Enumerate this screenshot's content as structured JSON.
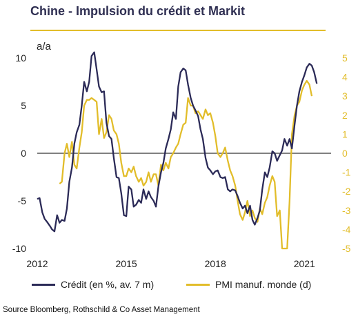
{
  "title": "Chine - Impulsion du crédit et Markit",
  "source": "Source Bloomberg, Rothschild  & Co Asset Management",
  "colors": {
    "credit": "#2b2a57",
    "pmi": "#e2bd2a",
    "zero_line": "#808080",
    "title": "#2f2f52"
  },
  "chart_data": {
    "type": "line",
    "ylabel": "a/a",
    "x_range": [
      2012.0,
      2021.9
    ],
    "x_ticks": [
      2012,
      2015,
      2018,
      2021
    ],
    "x_tick_labels": [
      "2012",
      "2015",
      "2018",
      "2021"
    ],
    "ylim_left": [
      -10,
      10
    ],
    "yticks_left": [
      10,
      5,
      0,
      -5,
      -10
    ],
    "yticks_left_labels": [
      "10",
      "5",
      "0",
      "-5",
      "-10"
    ],
    "ylim_right": [
      -5,
      5
    ],
    "yticks_right": [
      5,
      4,
      3,
      2,
      1,
      0,
      -1,
      -2,
      -3,
      -4,
      -5
    ],
    "yticks_right_labels": [
      "5",
      "4",
      "3",
      "2",
      "1",
      "0",
      "-1",
      "-2",
      "-3",
      "-4",
      "-5"
    ],
    "zero_line": true,
    "series": [
      {
        "name": "Crédit (en %, av. 7 m)",
        "axis": "left",
        "points": [
          [
            2012.0,
            -4.8
          ],
          [
            2012.08,
            -4.7
          ],
          [
            2012.17,
            -6.2
          ],
          [
            2012.25,
            -6.9
          ],
          [
            2012.33,
            -7.2
          ],
          [
            2012.42,
            -7.6
          ],
          [
            2012.5,
            -8.0
          ],
          [
            2012.58,
            -8.2
          ],
          [
            2012.67,
            -6.5
          ],
          [
            2012.75,
            -7.3
          ],
          [
            2012.83,
            -7.0
          ],
          [
            2012.92,
            -7.1
          ],
          [
            2013.0,
            -5.8
          ],
          [
            2013.08,
            -3.0
          ],
          [
            2013.17,
            -1.5
          ],
          [
            2013.25,
            1.0
          ],
          [
            2013.33,
            2.2
          ],
          [
            2013.42,
            3.0
          ],
          [
            2013.5,
            5.0
          ],
          [
            2013.58,
            7.5
          ],
          [
            2013.67,
            6.5
          ],
          [
            2013.75,
            7.5
          ],
          [
            2013.83,
            10.2
          ],
          [
            2013.92,
            10.6
          ],
          [
            2014.0,
            8.8
          ],
          [
            2014.08,
            7.0
          ],
          [
            2014.17,
            6.4
          ],
          [
            2014.25,
            6.5
          ],
          [
            2014.33,
            3.2
          ],
          [
            2014.42,
            1.8
          ],
          [
            2014.5,
            1.5
          ],
          [
            2014.58,
            -0.5
          ],
          [
            2014.67,
            -2.5
          ],
          [
            2014.75,
            -2.6
          ],
          [
            2014.83,
            -4.2
          ],
          [
            2014.92,
            -6.5
          ],
          [
            2015.0,
            -6.6
          ],
          [
            2015.08,
            -3.5
          ],
          [
            2015.17,
            -3.8
          ],
          [
            2015.25,
            -5.6
          ],
          [
            2015.33,
            -5.4
          ],
          [
            2015.42,
            -4.9
          ],
          [
            2015.5,
            -5.2
          ],
          [
            2015.58,
            -3.8
          ],
          [
            2015.67,
            -4.8
          ],
          [
            2015.75,
            -4.0
          ],
          [
            2015.83,
            -4.6
          ],
          [
            2015.92,
            -5.0
          ],
          [
            2016.0,
            -5.6
          ],
          [
            2016.08,
            -3.5
          ],
          [
            2016.17,
            -2.0
          ],
          [
            2016.25,
            -1.0
          ],
          [
            2016.33,
            0.5
          ],
          [
            2016.42,
            1.5
          ],
          [
            2016.5,
            2.5
          ],
          [
            2016.58,
            4.3
          ],
          [
            2016.67,
            3.6
          ],
          [
            2016.75,
            7.0
          ],
          [
            2016.83,
            8.5
          ],
          [
            2016.92,
            8.9
          ],
          [
            2017.0,
            8.7
          ],
          [
            2017.08,
            7.2
          ],
          [
            2017.17,
            5.8
          ],
          [
            2017.25,
            5.0
          ],
          [
            2017.33,
            4.5
          ],
          [
            2017.42,
            3.9
          ],
          [
            2017.5,
            2.5
          ],
          [
            2017.58,
            1.5
          ],
          [
            2017.67,
            -0.5
          ],
          [
            2017.75,
            -1.5
          ],
          [
            2017.83,
            -1.8
          ],
          [
            2017.92,
            -2.2
          ],
          [
            2018.0,
            -1.9
          ],
          [
            2018.08,
            -1.8
          ],
          [
            2018.17,
            -2.5
          ],
          [
            2018.25,
            -2.6
          ],
          [
            2018.33,
            -2.5
          ],
          [
            2018.42,
            -3.8
          ],
          [
            2018.5,
            -4.0
          ],
          [
            2018.58,
            -3.8
          ],
          [
            2018.67,
            -3.9
          ],
          [
            2018.75,
            -4.5
          ],
          [
            2018.83,
            -5.2
          ],
          [
            2018.92,
            -5.8
          ],
          [
            2019.0,
            -5.5
          ],
          [
            2019.08,
            -6.3
          ],
          [
            2019.17,
            -5.5
          ],
          [
            2019.25,
            -7.0
          ],
          [
            2019.33,
            -7.5
          ],
          [
            2019.42,
            -6.8
          ],
          [
            2019.5,
            -6.0
          ],
          [
            2019.58,
            -3.8
          ],
          [
            2019.67,
            -2.0
          ],
          [
            2019.75,
            -2.5
          ],
          [
            2019.83,
            -1.5
          ],
          [
            2019.92,
            0.2
          ],
          [
            2020.0,
            0.0
          ],
          [
            2020.08,
            -0.8
          ],
          [
            2020.17,
            -0.2
          ],
          [
            2020.25,
            0.3
          ],
          [
            2020.33,
            1.5
          ],
          [
            2020.42,
            0.8
          ],
          [
            2020.5,
            1.5
          ],
          [
            2020.58,
            0.5
          ],
          [
            2020.67,
            3.0
          ],
          [
            2020.75,
            5.0
          ],
          [
            2020.83,
            6.5
          ],
          [
            2020.92,
            7.5
          ],
          [
            2021.0,
            8.2
          ],
          [
            2021.08,
            9.0
          ],
          [
            2021.17,
            9.4
          ],
          [
            2021.25,
            9.2
          ],
          [
            2021.33,
            8.5
          ],
          [
            2021.42,
            7.3
          ]
        ]
      },
      {
        "name": "PMI manuf. monde (d)",
        "axis": "right",
        "points": [
          [
            2012.75,
            -1.6
          ],
          [
            2012.83,
            -1.5
          ],
          [
            2012.92,
            0.0
          ],
          [
            2013.0,
            0.5
          ],
          [
            2013.08,
            -0.2
          ],
          [
            2013.17,
            0.6
          ],
          [
            2013.25,
            -0.6
          ],
          [
            2013.33,
            -0.8
          ],
          [
            2013.42,
            0.3
          ],
          [
            2013.5,
            1.1
          ],
          [
            2013.58,
            2.5
          ],
          [
            2013.67,
            2.8
          ],
          [
            2013.75,
            2.8
          ],
          [
            2013.83,
            2.9
          ],
          [
            2013.92,
            2.8
          ],
          [
            2014.0,
            2.7
          ],
          [
            2014.08,
            1.0
          ],
          [
            2014.17,
            1.8
          ],
          [
            2014.25,
            0.8
          ],
          [
            2014.33,
            1.1
          ],
          [
            2014.42,
            2.0
          ],
          [
            2014.5,
            1.8
          ],
          [
            2014.58,
            1.2
          ],
          [
            2014.67,
            1.0
          ],
          [
            2014.75,
            0.5
          ],
          [
            2014.83,
            -0.5
          ],
          [
            2014.92,
            -1.2
          ],
          [
            2015.0,
            -1.2
          ],
          [
            2015.08,
            -0.8
          ],
          [
            2015.17,
            -1.0
          ],
          [
            2015.25,
            -0.7
          ],
          [
            2015.33,
            -1.2
          ],
          [
            2015.42,
            -1.5
          ],
          [
            2015.5,
            -1.3
          ],
          [
            2015.58,
            -1.7
          ],
          [
            2015.67,
            -1.5
          ],
          [
            2015.75,
            -1.0
          ],
          [
            2015.83,
            -1.5
          ],
          [
            2015.92,
            -1.1
          ],
          [
            2016.0,
            -1.1
          ],
          [
            2016.08,
            -1.7
          ],
          [
            2016.17,
            -0.6
          ],
          [
            2016.25,
            -0.9
          ],
          [
            2016.33,
            -0.5
          ],
          [
            2016.42,
            -0.8
          ],
          [
            2016.5,
            -0.2
          ],
          [
            2016.58,
            0.0
          ],
          [
            2016.67,
            0.3
          ],
          [
            2016.75,
            0.5
          ],
          [
            2016.83,
            1.0
          ],
          [
            2016.92,
            1.5
          ],
          [
            2017.0,
            1.6
          ],
          [
            2017.08,
            2.9
          ],
          [
            2017.17,
            2.5
          ],
          [
            2017.25,
            2.5
          ],
          [
            2017.33,
            2.1
          ],
          [
            2017.42,
            2.2
          ],
          [
            2017.5,
            2.0
          ],
          [
            2017.58,
            1.8
          ],
          [
            2017.67,
            2.3
          ],
          [
            2017.75,
            2.0
          ],
          [
            2017.83,
            2.1
          ],
          [
            2017.92,
            1.6
          ],
          [
            2018.0,
            0.9
          ],
          [
            2018.08,
            0.0
          ],
          [
            2018.17,
            -0.2
          ],
          [
            2018.25,
            0.0
          ],
          [
            2018.33,
            0.3
          ],
          [
            2018.42,
            -0.4
          ],
          [
            2018.5,
            -0.9
          ],
          [
            2018.58,
            -1.2
          ],
          [
            2018.67,
            -1.7
          ],
          [
            2018.75,
            -2.5
          ],
          [
            2018.83,
            -3.2
          ],
          [
            2018.92,
            -3.5
          ],
          [
            2019.0,
            -3.1
          ],
          [
            2019.08,
            -2.5
          ],
          [
            2019.17,
            -3.3
          ],
          [
            2019.25,
            -3.0
          ],
          [
            2019.33,
            -3.4
          ],
          [
            2019.42,
            -3.6
          ],
          [
            2019.5,
            -2.9
          ],
          [
            2019.58,
            -3.2
          ],
          [
            2019.67,
            -2.6
          ],
          [
            2019.75,
            -2.3
          ],
          [
            2019.83,
            -1.7
          ],
          [
            2019.92,
            -1.2
          ],
          [
            2020.0,
            -1.5
          ],
          [
            2020.08,
            -3.3
          ],
          [
            2020.17,
            -3.0
          ],
          [
            2020.25,
            -5.0
          ],
          [
            2020.33,
            -5.0
          ],
          [
            2020.42,
            -5.0
          ],
          [
            2020.5,
            -2.5
          ],
          [
            2020.58,
            1.0
          ],
          [
            2020.67,
            2.0
          ],
          [
            2020.75,
            2.5
          ],
          [
            2020.83,
            2.7
          ],
          [
            2020.92,
            3.3
          ],
          [
            2021.0,
            3.6
          ],
          [
            2021.08,
            3.8
          ],
          [
            2021.17,
            3.6
          ],
          [
            2021.25,
            3.0
          ]
        ]
      }
    ]
  }
}
